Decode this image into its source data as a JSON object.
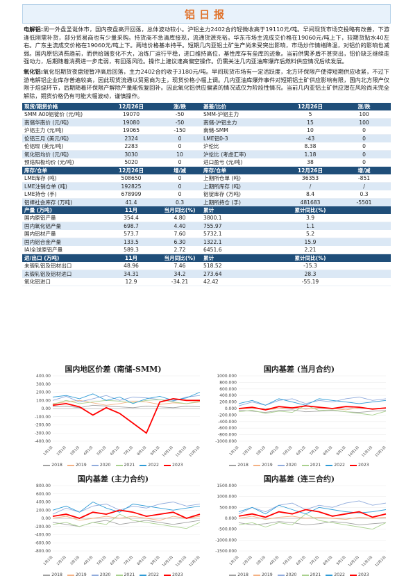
{
  "title": "铝日报",
  "paragraphs": {
    "aluminum": {
      "label": "电解铝:",
      "text": "周一外盘圣诞休市，国内夜盘高开回落，总体波动较小。沪铝主力2402合约轻微收高于19110元/吨。早间现货市场交投略有改善，下游逢低刚需补货，部分贸易商也有少量采购。持货商不急清库接现，流通货源充裕。华东市场主流成交价格在19060元/吨上下，较期货贴水40左右。广东主流成交价格在19060元/吨上下。两地价格基本持平。短期几内亚铝土矿生产尚未受突出影响，市场炒作情绪降温，对铝价的影响也减弱。国内原铝消费趋前，而供给端变化不大，冶炼厂运行平稳，进口维持高位，基性库存有垒库的迹象。当前供需矛盾不甚突出，铝价缺乏继续走强动力，后期随着消费进一步走弱，有回落风险。操作上建议逢高偏空操作。仍需关注几内亚油库爆炸后燃料供应情况后续发展。"
    },
    "alumina": {
      "label": "氧化铝:",
      "text": "氧化铝期货夜盘短暂冲高后回落，主力2402合约收于3180元/吨。早间现货市场有一定活跃度，北方环保限产使得短期供应收紧，不过下游电解铝企业库存普遍较高，因此现货流通以贸易商为主，现货价格小幅上调。几内亚油库爆炸事件对短期铝土矿供应影响有限，国内北方限产仅限于焙烧环节，后期随着环保限产解除产量能恢复回补。因此氧化铝供应偏紧的情况或仅为阶段性情况。当前几内亚铝土矿供应潜在风险尚未完全解除，期货价格仍有可能大幅波动，谨慎操作。"
    }
  },
  "table": {
    "sections": [
      {
        "header": [
          "现货/期货价格",
          "12月26日",
          "涨/跌",
          "基差/比价",
          "12月26日",
          "涨/跌"
        ],
        "rows": [
          [
            "SMM A00铝锭价 (元/吨)",
            "19070",
            "-50",
            "SMM-沪铝主力",
            "5",
            "100"
          ],
          [
            "南储华南价 (元/吨)",
            "19080",
            "-50",
            "南储-沪铝主力",
            "15",
            "100"
          ],
          [
            "沪铝主力 (元/吨)",
            "19065",
            "-150",
            "南储-SMM",
            "10",
            "0"
          ],
          [
            "伦铝三月 (美元/吨)",
            "2324",
            "0",
            "LME铝0-3",
            "-43",
            "0"
          ],
          [
            "伦铝现 (美元/吨)",
            "2283",
            "0",
            "沪伦比",
            "8.38",
            "0"
          ],
          [
            "氧化铝均价 (元/吨)",
            "3030",
            "10",
            "沪伦比 (考虑汇率)",
            "1.18",
            "0"
          ],
          [
            "预焙阳极均价 (元/吨)",
            "5020",
            "0",
            "进口盈亏 (元/吨)",
            "38",
            "0"
          ]
        ]
      },
      {
        "header": [
          "库存/仓单",
          "12月26日",
          "增/减",
          "库存/仓单",
          "12月26日",
          "增/减"
        ],
        "rows": [
          [
            "LME库存 (吨)",
            "508650",
            "0",
            "上期所仓单 (吨)",
            "36353",
            "-851"
          ],
          [
            "LME注销仓单 (吨)",
            "192825",
            "0",
            "上期所库存 (吨)",
            "/",
            "/"
          ],
          [
            "LME持仓 (手)",
            "678999",
            "0",
            "铝锭库存 (万吨)",
            "8.4",
            "0.3"
          ],
          [
            "铝棒社会库存 (万吨)",
            "41.4",
            "0.3",
            "上期所持仓 (手)",
            "481683",
            "-5501"
          ]
        ]
      },
      {
        "header": [
          "产量 (万吨)",
          "11月",
          "当月同比(%)",
          "累计",
          "累计同比(%)",
          ""
        ],
        "rows": [
          [
            "国内原铝产量",
            "354.4",
            "4.80",
            "3800.1",
            "3.9",
            ""
          ],
          [
            "国内氧化铝产量",
            "698.7",
            "4.40",
            "755.97",
            "1.1",
            ""
          ],
          [
            "国内铝材产量",
            "573.7",
            "7.60",
            "5732.1",
            "5.2",
            ""
          ],
          [
            "国内铝合金产量",
            "133.5",
            "6.30",
            "1322.1",
            "15.9",
            ""
          ],
          [
            "IAI全球原铝产量",
            "589.3",
            "2.72",
            "6451.6",
            "2.21",
            ""
          ]
        ]
      },
      {
        "header": [
          "进/出口 (万吨)",
          "11月",
          "当月同比(%)",
          "累计",
          "累计同比(%)",
          ""
        ],
        "rows": [
          [
            "未锻轧铝及铝材出口",
            "48.96",
            "7.46",
            "518.52",
            "-15.3",
            ""
          ],
          [
            "未锻轧铝及铝材进口",
            "34.31",
            "34.2",
            "273.64",
            "28.3",
            ""
          ],
          [
            "氧化铝进口",
            "12.9",
            "-34.21",
            "42.42",
            "-55.19",
            ""
          ]
        ]
      }
    ]
  },
  "legend": [
    "2018",
    "2019",
    "2020",
    "2021",
    "2022",
    "2023"
  ],
  "series_colors": [
    "#a0a0a0",
    "#f4b183",
    "#8faadc",
    "#a9d18e",
    "#2e9bd6",
    "#ff0000"
  ],
  "chart_data": [
    {
      "type": "line",
      "title": "国内地区价差 (南储-SMM)",
      "ylim": [
        -400,
        400
      ],
      "yticks": [
        "400.00",
        "300.00",
        "200.00",
        "100.00",
        "0.00",
        "-100.00",
        "-200.00",
        "-300.00",
        "-400.00"
      ],
      "categories": [
        "1月1日",
        "2月1日",
        "3月1日",
        "4月1日",
        "5月1日",
        "6月1日",
        "7月1日",
        "8月1日",
        "9月1日",
        "10月1日",
        "11月1日",
        "12月1日"
      ],
      "series": [
        {
          "name": "2018",
          "values": [
            20,
            30,
            10,
            40,
            30,
            20,
            10,
            30,
            20,
            10,
            30,
            20
          ]
        },
        {
          "name": "2019",
          "values": [
            60,
            80,
            100,
            70,
            40,
            60,
            90,
            80,
            50,
            70,
            60,
            80
          ]
        },
        {
          "name": "2020",
          "values": [
            100,
            150,
            80,
            120,
            160,
            100,
            140,
            130,
            110,
            90,
            140,
            160
          ]
        },
        {
          "name": "2021",
          "values": [
            50,
            100,
            60,
            80,
            100,
            90,
            70,
            100,
            110,
            80,
            60,
            90
          ]
        },
        {
          "name": "2022",
          "values": [
            140,
            160,
            120,
            180,
            100,
            140,
            60,
            120,
            150,
            100,
            130,
            200
          ]
        },
        {
          "name": "2023",
          "values": [
            40,
            60,
            20,
            -80,
            10,
            -60,
            -180,
            -300,
            80,
            120,
            100,
            100
          ]
        }
      ]
    },
    {
      "type": "line",
      "title": "国内基差 (当月合约)",
      "ylim": [
        -1000,
        1000
      ],
      "yticks": [
        "1000.000",
        "800.000",
        "600.000",
        "400.000",
        "200.000",
        "0.000",
        "-200.000",
        "-400.000",
        "-600.000",
        "-800.000",
        "-1000.000"
      ],
      "categories": [
        "1月1日",
        "2月1日",
        "3月1日",
        "4月1日",
        "5月1日",
        "6月1日",
        "7月1日",
        "8月1日",
        "9月1日",
        "10月1日",
        "11月1日",
        "12月1日"
      ],
      "series": [
        {
          "name": "2018",
          "values": [
            -50,
            -80,
            -120,
            -60,
            -40,
            -100,
            -80,
            -60,
            -100,
            -120,
            -80,
            -60
          ]
        },
        {
          "name": "2019",
          "values": [
            -20,
            20,
            -40,
            0,
            40,
            -20,
            20,
            0,
            -40,
            20,
            0,
            20
          ]
        },
        {
          "name": "2020",
          "values": [
            80,
            200,
            100,
            250,
            300,
            150,
            250,
            200,
            300,
            350,
            250,
            300
          ]
        },
        {
          "name": "2021",
          "values": [
            -100,
            -50,
            -150,
            -80,
            -120,
            100,
            -60,
            -40,
            -100,
            -150,
            -200,
            -80
          ]
        },
        {
          "name": "2022",
          "values": [
            150,
            250,
            100,
            300,
            200,
            100,
            300,
            250,
            200,
            150,
            200,
            250
          ]
        },
        {
          "name": "2023",
          "values": [
            0,
            40,
            -40,
            60,
            20,
            80,
            40,
            0,
            60,
            40,
            -20,
            20
          ]
        }
      ]
    },
    {
      "type": "line",
      "title": "国内基差 (主力合约)",
      "ylim": [
        -800,
        800
      ],
      "yticks": [
        "800.00",
        "600.00",
        "400.00",
        "200.00",
        "0.00",
        "-200.00",
        "-400.00",
        "-600.00",
        "-800.00"
      ],
      "categories": [
        "1月1日",
        "2月1日",
        "3月1日",
        "4月1日",
        "5月1日",
        "6月1日",
        "7月1日",
        "8月1日",
        "9月1日",
        "10月1日",
        "11月1日",
        "12月1日"
      ],
      "series": [
        {
          "name": "2018",
          "values": [
            -100,
            -150,
            -200,
            -100,
            -50,
            -150,
            -100,
            -50,
            -100,
            -150,
            -100,
            -50
          ]
        },
        {
          "name": "2019",
          "values": [
            0,
            50,
            -50,
            0,
            50,
            0,
            50,
            0,
            -50,
            50,
            0,
            50
          ]
        },
        {
          "name": "2020",
          "values": [
            100,
            250,
            150,
            300,
            350,
            200,
            300,
            250,
            350,
            400,
            300,
            350
          ]
        },
        {
          "name": "2021",
          "values": [
            -150,
            -100,
            -200,
            -100,
            -150,
            100,
            -50,
            -100,
            -150,
            -200,
            -250,
            -100
          ]
        },
        {
          "name": "2022",
          "values": [
            200,
            300,
            150,
            400,
            250,
            150,
            350,
            300,
            250,
            200,
            250,
            300
          ]
        },
        {
          "name": "2023",
          "values": [
            50,
            100,
            0,
            150,
            100,
            200,
            150,
            50,
            100,
            150,
            0,
            100
          ]
        }
      ]
    },
    {
      "type": "line",
      "title": "国内基差 (连三合约)",
      "ylim": [
        -1500,
        1500
      ],
      "yticks": [
        "1500.000",
        "1000.000",
        "500.000",
        "0.000",
        "-500.000",
        "-1000.000",
        "-1500.000"
      ],
      "categories": [
        "1月1日",
        "2月1日",
        "3月1日",
        "4月1日",
        "5月1日",
        "6月1日",
        "7月1日",
        "8月1日",
        "9月1日",
        "10月1日",
        "11月1日",
        "12月1日"
      ],
      "series": [
        {
          "name": "2018",
          "values": [
            -200,
            -300,
            -250,
            -150,
            -200,
            -300,
            -250,
            -150,
            -200,
            -300,
            -250,
            -200
          ]
        },
        {
          "name": "2019",
          "values": [
            0,
            100,
            -50,
            50,
            100,
            0,
            50,
            0,
            -50,
            50,
            0,
            50
          ]
        },
        {
          "name": "2020",
          "values": [
            200,
            500,
            300,
            600,
            700,
            400,
            600,
            500,
            700,
            800,
            600,
            700
          ]
        },
        {
          "name": "2021",
          "values": [
            -300,
            -200,
            -400,
            -200,
            -300,
            200,
            -100,
            -200,
            -300,
            -400,
            -500,
            -200
          ]
        },
        {
          "name": "2022",
          "values": [
            300,
            500,
            200,
            600,
            400,
            200,
            500,
            400,
            300,
            250,
            300,
            400
          ]
        },
        {
          "name": "2023",
          "values": [
            100,
            200,
            50,
            300,
            200,
            400,
            300,
            100,
            200,
            300,
            50,
            200
          ]
        }
      ]
    }
  ]
}
